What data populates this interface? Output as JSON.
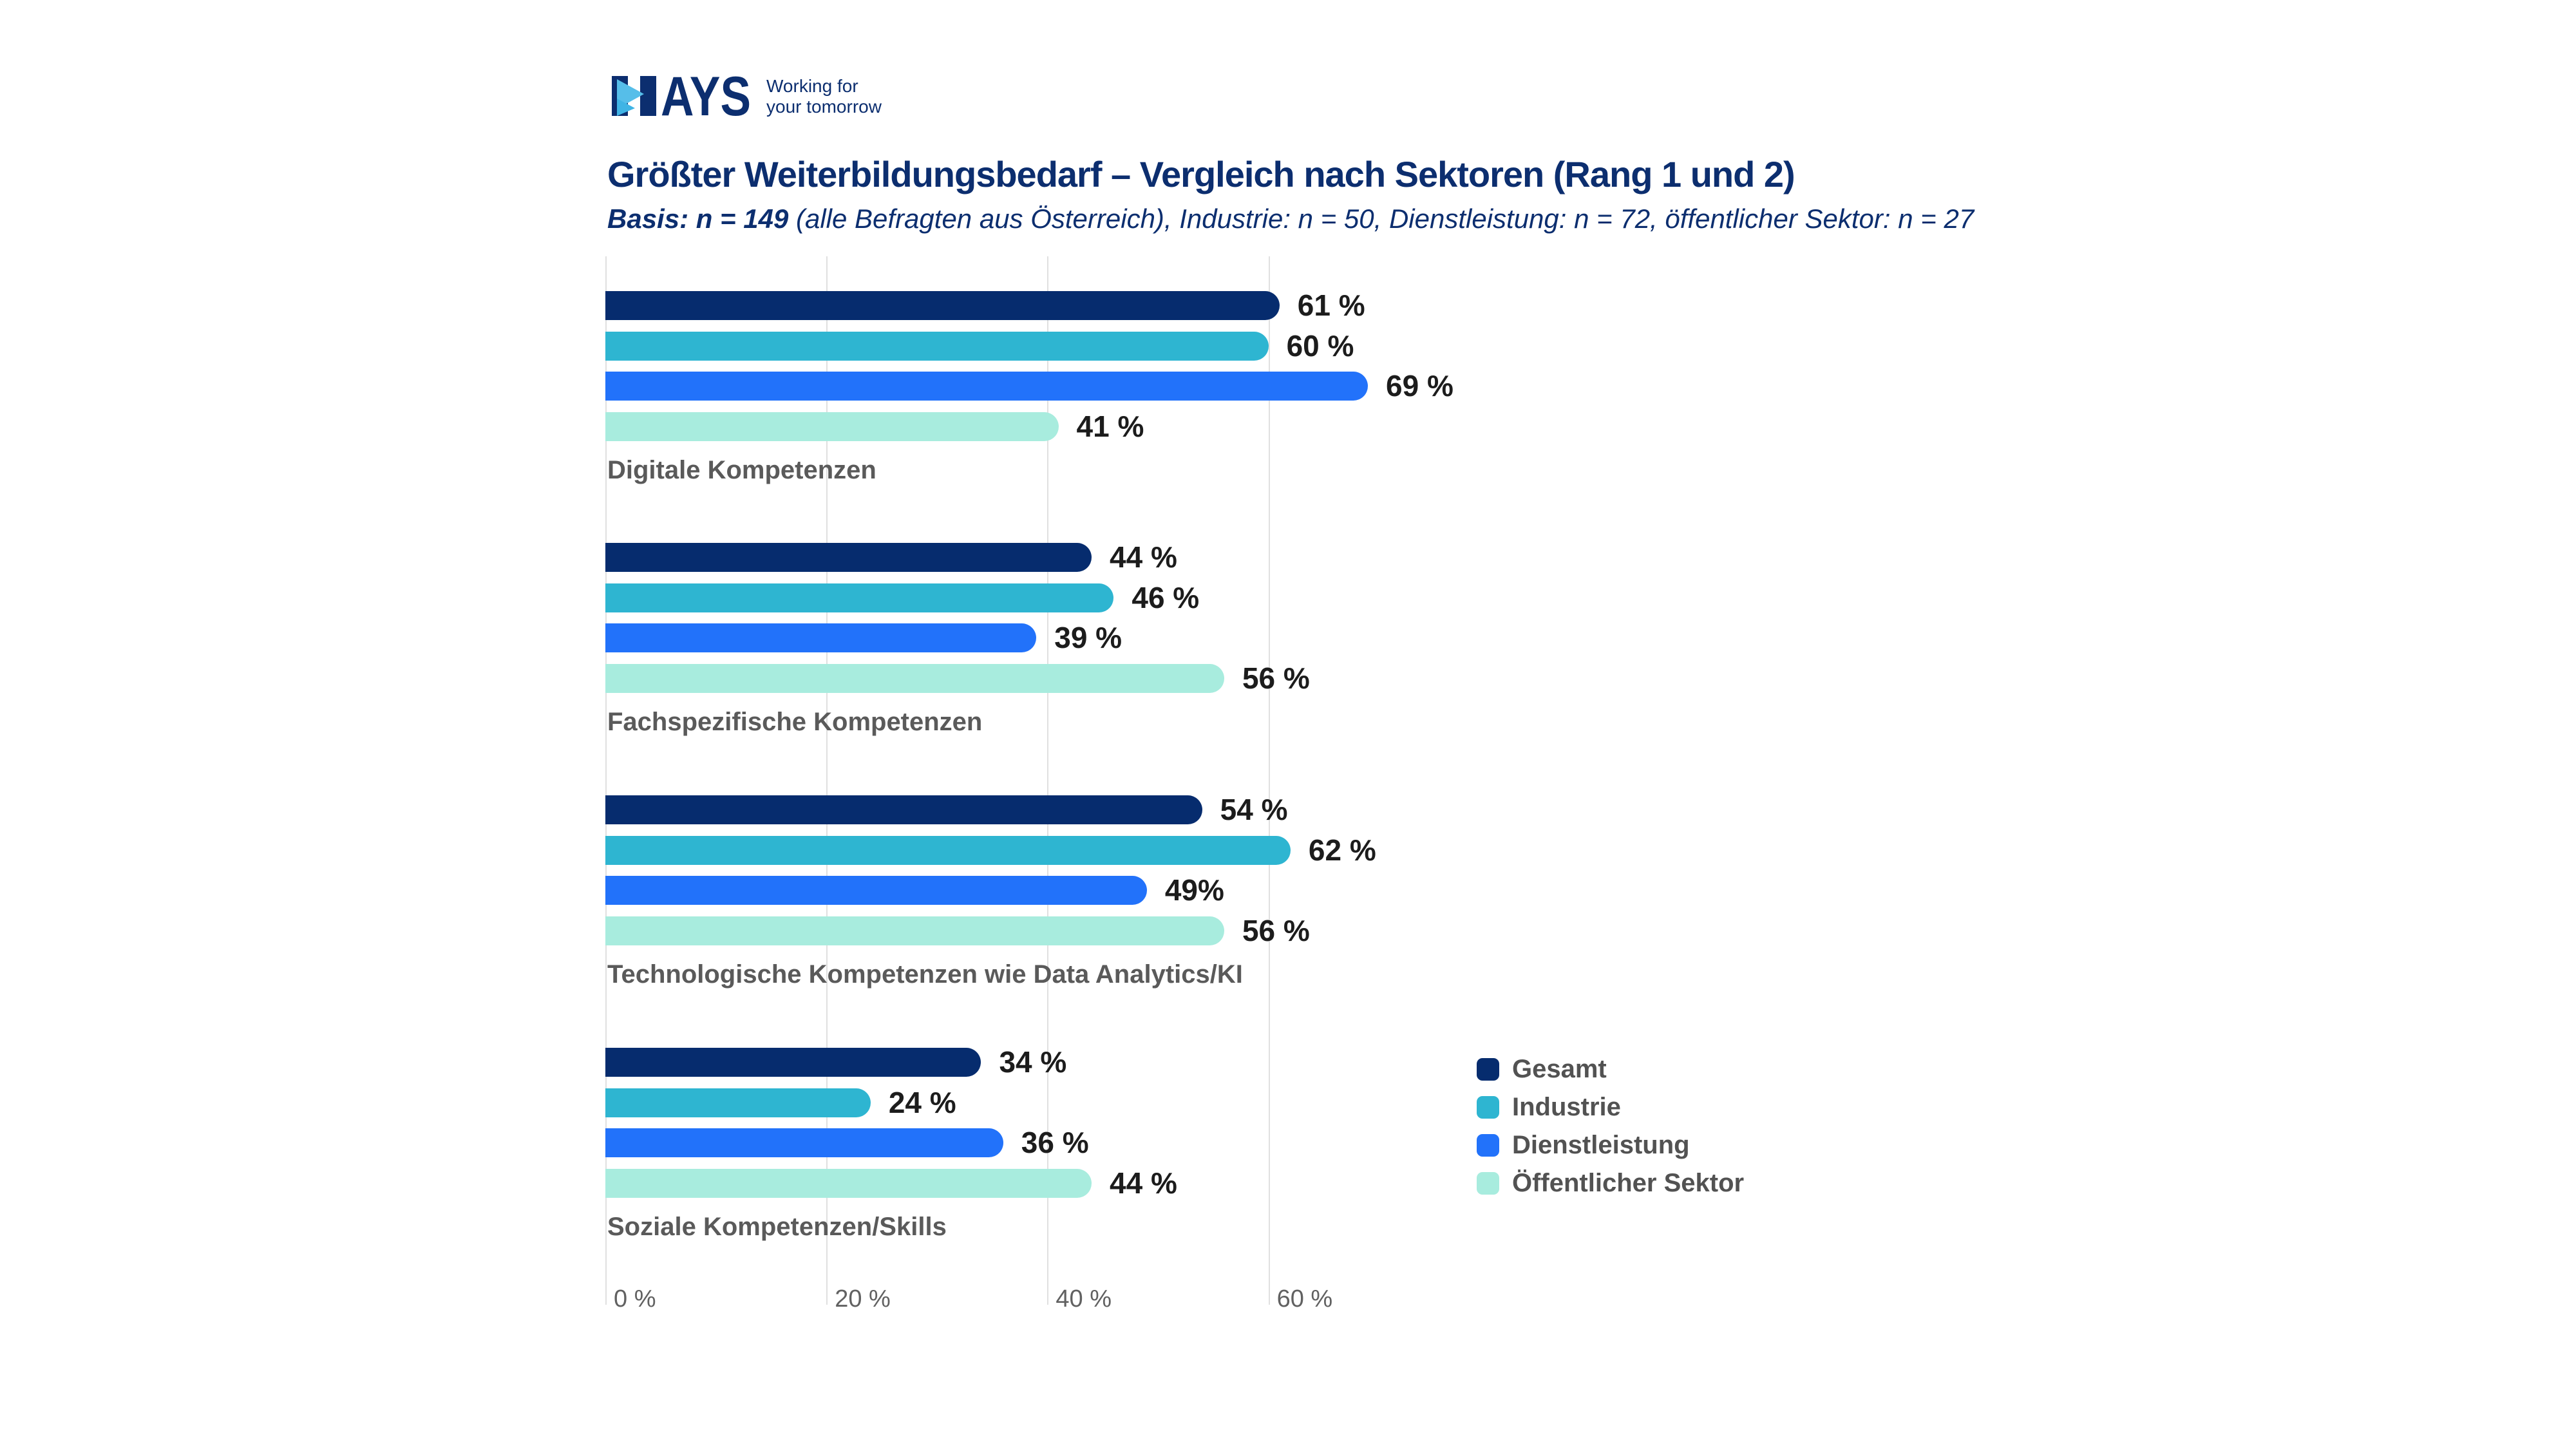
{
  "logo": {
    "brand": "HAYS",
    "tagline_line1": "Working for",
    "tagline_line2": "your tomorrow"
  },
  "header": {
    "title": "Größter Weiterbildungsbedarf – Vergleich nach Sektoren (Rang 1 und 2)",
    "subtitle_bold": "Basis: n = 149",
    "subtitle_rest": " (alle Befragten aus Österreich), Industrie: n = 50, Dienstleistung: n = 72, öffentlicher Sektor: n = 27"
  },
  "colors": {
    "brand_navy": "#0c2e6f",
    "logo_arrow_light": "#56bee9",
    "logo_arrow_mid": "#3fb4e5",
    "gridline": "#e0e0e0",
    "value_label": "#1c1c1c",
    "category_label": "#5a5a5a",
    "tick_label": "#616161",
    "legend_label": "#525252"
  },
  "chart_data": {
    "type": "bar",
    "orientation": "horizontal",
    "title": "Größter Weiterbildungsbedarf – Vergleich nach Sektoren (Rang 1 und 2)",
    "subtitle": "Basis: n = 149 (alle Befragten aus Österreich), Industrie: n = 50, Dienstleistung: n = 72, öffentlicher Sektor: n = 27",
    "categories": [
      "Digitale Kompetenzen",
      "Fachspezifische Kompetenzen",
      "Technologische Kompetenzen wie Data Analytics/KI",
      "Soziale Kompetenzen/Skills"
    ],
    "series": [
      {
        "name": "Gesamt",
        "color": "#062c6e",
        "values": [
          61,
          44,
          54,
          34
        ],
        "labels": [
          "61 %",
          "44 %",
          "54 %",
          "34 %"
        ]
      },
      {
        "name": "Industrie",
        "color": "#2eb5d1",
        "values": [
          60,
          46,
          62,
          24
        ],
        "labels": [
          "60 %",
          "46 %",
          "62 %",
          "24 %"
        ]
      },
      {
        "name": "Dienstleistung",
        "color": "#2272fa",
        "values": [
          69,
          39,
          49,
          36
        ],
        "labels": [
          "69 %",
          "39 %",
          "49%",
          "36 %"
        ]
      },
      {
        "name": "Öffentlicher Sektor",
        "color": "#a8ecde",
        "values": [
          41,
          56,
          56,
          44
        ],
        "labels": [
          "41 %",
          "56 %",
          "56 %",
          "44 %"
        ]
      }
    ],
    "xlabel": "",
    "ylabel": "",
    "xlim": [
      0,
      80
    ],
    "x_ticks": [
      "0 %",
      "20 %",
      "40 %",
      "60 %"
    ],
    "x_tick_values": [
      0,
      20,
      40,
      60
    ],
    "grid": "vertical",
    "legend_position": "right",
    "unit": "%"
  }
}
